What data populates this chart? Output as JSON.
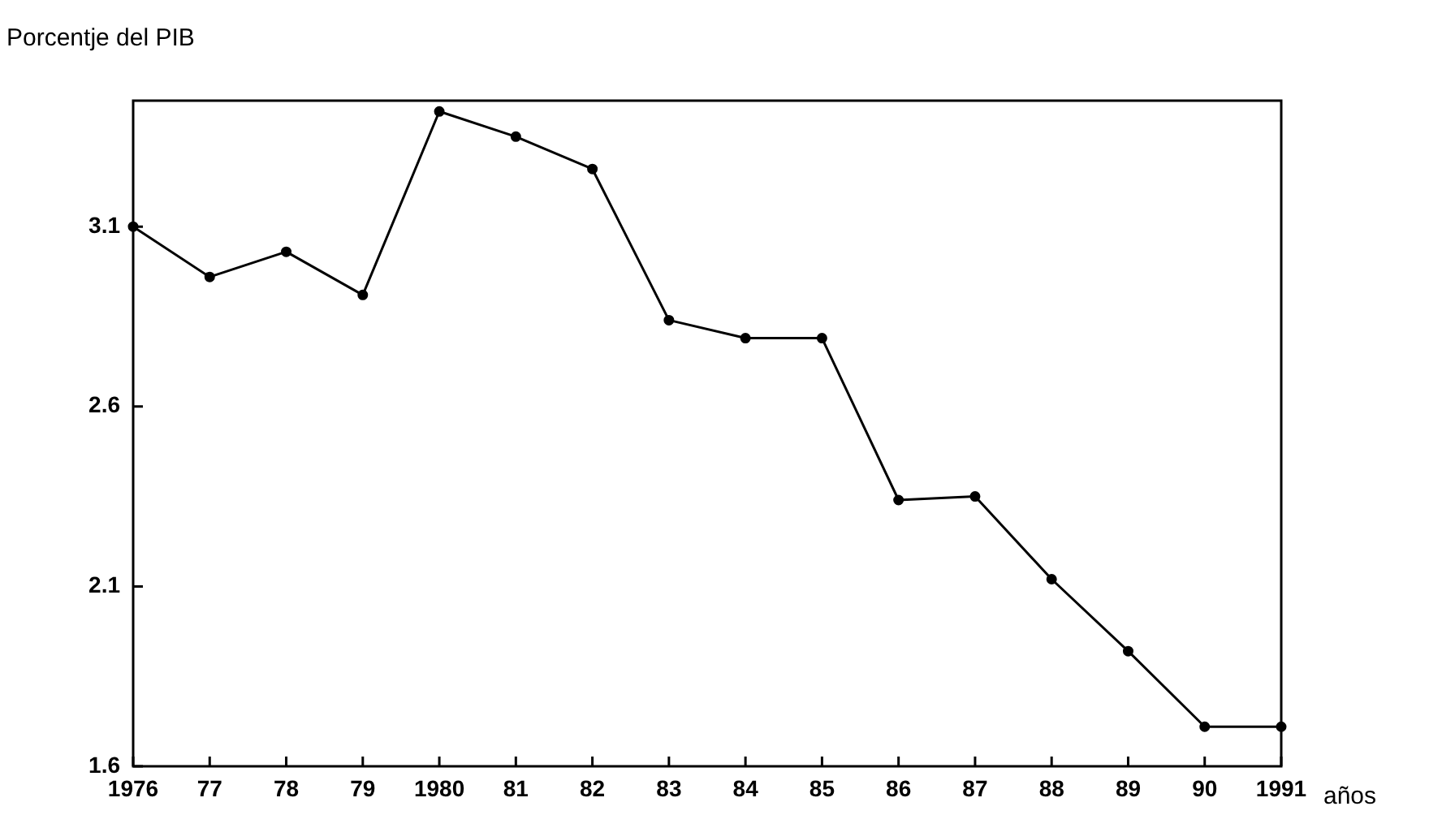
{
  "chart_data": {
    "type": "line",
    "ylabel": "Porcentje del PIB",
    "xlabel": "años",
    "categories": [
      "1976",
      "77",
      "78",
      "79",
      "1980",
      "81",
      "82",
      "83",
      "84",
      "85",
      "86",
      "87",
      "88",
      "89",
      "90",
      "1991"
    ],
    "series": [
      {
        "color": "#000000",
        "values": [
          3.1,
          2.96,
          3.03,
          2.91,
          3.42,
          3.35,
          3.26,
          2.84,
          2.79,
          2.79,
          2.34,
          2.35,
          2.12,
          1.92,
          1.71,
          1.71
        ]
      }
    ],
    "ylim": [
      1.6,
      3.45
    ],
    "yticks": [
      3.1,
      2.6,
      2.1,
      1.6
    ],
    "grid": false,
    "legend": false,
    "marker": "circle",
    "line_style": "solid"
  }
}
